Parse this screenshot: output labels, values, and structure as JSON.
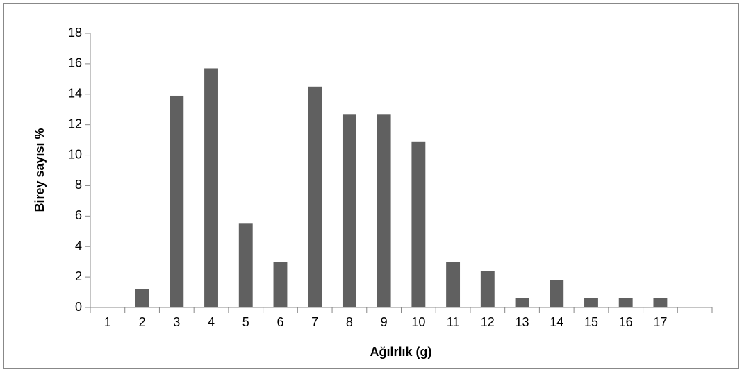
{
  "chart_data": {
    "type": "bar",
    "x_label": "Ağılrlık (g)",
    "y_label": "Birey sayısı %",
    "categories": [
      "1",
      "2",
      "3",
      "4",
      "5",
      "6",
      "7",
      "8",
      "9",
      "10",
      "11",
      "12",
      "13",
      "14",
      "15",
      "16",
      "17",
      null
    ],
    "values": [
      0,
      1.2,
      13.9,
      15.7,
      5.5,
      3.0,
      14.5,
      12.7,
      12.7,
      10.9,
      3.0,
      2.4,
      0.6,
      1.8,
      0.6,
      0.6,
      0.6,
      null
    ],
    "color": "#606060",
    "ylim": [
      0,
      18
    ],
    "yticks": [
      0,
      2,
      4,
      6,
      8,
      10,
      12,
      14,
      16,
      18
    ],
    "grid": false
  }
}
